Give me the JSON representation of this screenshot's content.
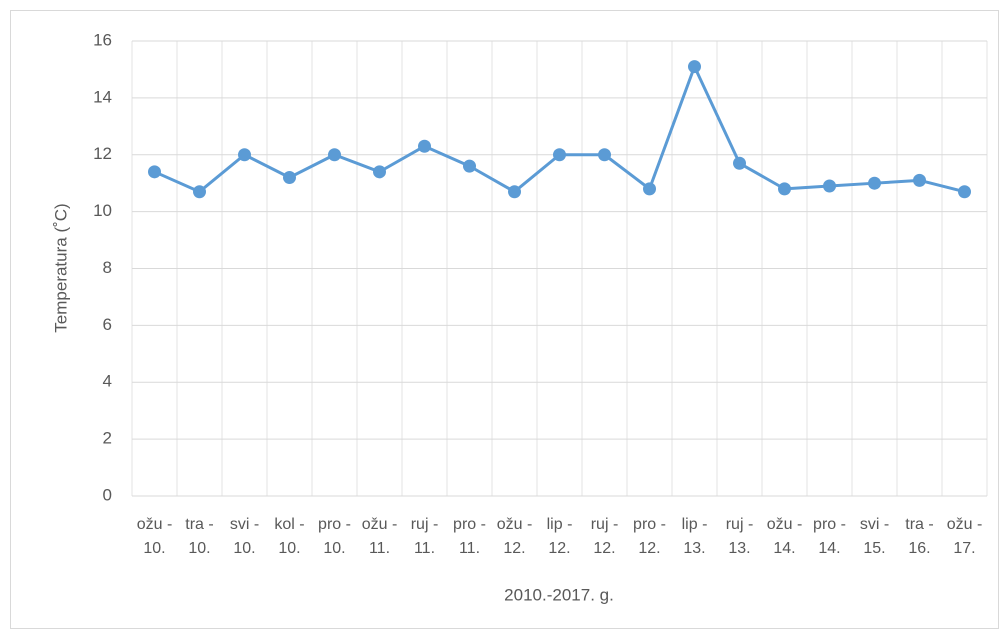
{
  "chart_data": {
    "type": "line",
    "y_label": "Temperatura (˚C)",
    "x_label": "2010.-2017. g.",
    "categories": [
      "ožu - 10.",
      "tra - 10.",
      "svi - 10.",
      "kol - 10.",
      "pro - 10.",
      "ožu - 11.",
      "ruj - 11.",
      "pro - 11.",
      "ožu - 12.",
      "lip - 12.",
      "ruj - 12.",
      "pro - 12.",
      "lip - 13.",
      "ruj - 13.",
      "ožu - 14.",
      "pro - 14.",
      "svi - 15.",
      "tra - 16.",
      "ožu - 17."
    ],
    "values": [
      11.4,
      10.7,
      12.0,
      11.2,
      12.0,
      11.4,
      12.3,
      11.6,
      10.7,
      12.0,
      12.0,
      10.8,
      15.1,
      11.7,
      10.8,
      10.9,
      11.0,
      11.1,
      10.7
    ],
    "color": "#5b9bd5",
    "ylim": [
      0,
      16
    ],
    "yticks": [
      0,
      2,
      4,
      6,
      8,
      10,
      12,
      14,
      16
    ],
    "grid": true
  }
}
